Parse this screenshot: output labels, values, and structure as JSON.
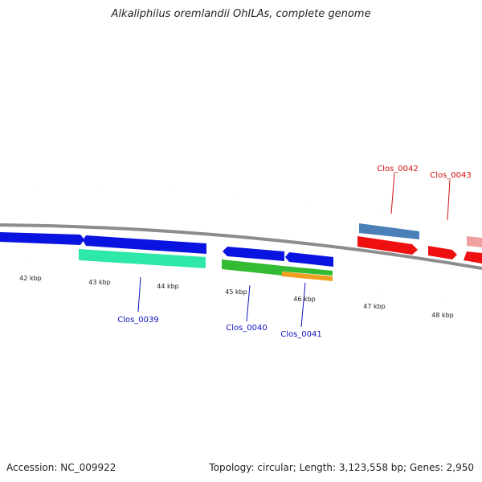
{
  "title": "Alkaliphilus oremlandii OhILAs, complete genome",
  "footer": {
    "accession": "Accession: NC_009922",
    "stats": "Topology: circular; Length: 3,123,558 bp; Genes: 2,950"
  },
  "colors": {
    "backbone": "#8c8c8c",
    "tick": "#2e8b22",
    "label_blue": "#1010c0",
    "label_red": "#d01010",
    "blue": "#0a14e0",
    "teal": "#2ee8a8",
    "green": "#33bb33",
    "orange": "#f0a020",
    "steelblue": "#4a7fb8",
    "red": "#ee1010",
    "pink": "#f0a0a0"
  },
  "scale": {
    "unit": "kbp",
    "tick_labels": [
      "42 kbp",
      "43 kbp",
      "44 kbp",
      "45 kbp",
      "46 kbp",
      "47 kbp",
      "48 kbp"
    ]
  },
  "genes": [
    {
      "name": "Clos_0039",
      "labeled": true,
      "strand": "-",
      "color": "teal",
      "label_color": "label_blue"
    },
    {
      "name": "Clos_0040",
      "labeled": true,
      "strand": "-",
      "color": "green",
      "label_color": "label_blue"
    },
    {
      "name": "Clos_0041",
      "labeled": true,
      "strand": "-",
      "color": "orange",
      "label_color": "label_blue"
    },
    {
      "name": "Clos_0042",
      "labeled": true,
      "strand": "+",
      "color": "steelblue",
      "label_color": "label_red"
    },
    {
      "name": "Clos_0043",
      "labeled": true,
      "strand": "+",
      "color": "red",
      "label_color": "label_red"
    }
  ]
}
